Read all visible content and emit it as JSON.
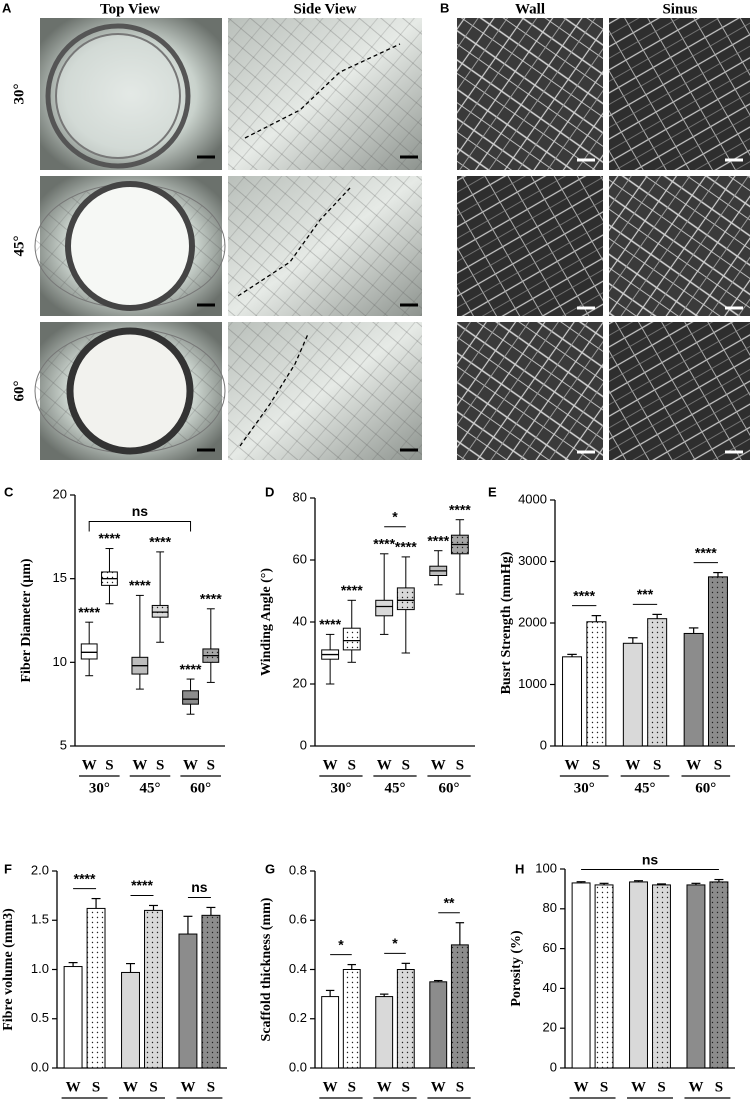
{
  "figure": {
    "labels": [
      "A",
      "B"
    ],
    "columns": [
      "Top View",
      "Side View",
      "Wall",
      "Sinus"
    ],
    "rows": [
      "30°",
      "45°",
      "60°"
    ]
  },
  "chart_data": [
    {
      "type": "box",
      "label": "C",
      "ylabel": "Fiber Diameter (μm)",
      "categories": [
        "W",
        "S",
        "W",
        "S",
        "W",
        "S"
      ],
      "groups": [
        "30°",
        "45°",
        "60°"
      ],
      "boxes": [
        {
          "min": 9.2,
          "q1": 10.2,
          "median": 10.6,
          "q3": 11.1,
          "max": 12.4
        },
        {
          "min": 13.5,
          "q1": 14.6,
          "median": 15.0,
          "q3": 15.4,
          "max": 16.8
        },
        {
          "min": 8.4,
          "q1": 9.3,
          "median": 9.8,
          "q3": 10.3,
          "max": 14.0
        },
        {
          "min": 11.2,
          "q1": 12.7,
          "median": 13.0,
          "q3": 13.4,
          "max": 16.6
        },
        {
          "min": 6.9,
          "q1": 7.5,
          "median": 7.8,
          "q3": 8.3,
          "max": 9.0
        },
        {
          "min": 8.8,
          "q1": 10.0,
          "median": 10.4,
          "q3": 10.8,
          "max": 13.2
        }
      ],
      "colors": [
        "#ffffff",
        "#ffffff",
        "#bdbdbd",
        "#d9d9d9",
        "#8c8c8c",
        "#a6a6a6"
      ],
      "dotted": [
        false,
        true,
        false,
        true,
        false,
        true
      ],
      "ylim": [
        5,
        20
      ],
      "yticks": [
        5,
        10,
        15,
        20
      ],
      "annotations": [
        {
          "text": "****",
          "at": 0
        },
        {
          "text": "****",
          "at": 1
        },
        {
          "text": "****",
          "at": 2
        },
        {
          "text": "****",
          "at": 3
        },
        {
          "text": "****",
          "at": 4
        },
        {
          "text": "****",
          "at": 5
        },
        {
          "text": "ns",
          "from": 0,
          "to": 4
        }
      ]
    },
    {
      "type": "box",
      "label": "D",
      "ylabel": "Winding Angle (°)",
      "categories": [
        "W",
        "S",
        "W",
        "S",
        "W",
        "S"
      ],
      "groups": [
        "30°",
        "45°",
        "60°"
      ],
      "boxes": [
        {
          "min": 20,
          "q1": 28,
          "median": 29.5,
          "q3": 31,
          "max": 36
        },
        {
          "min": 27,
          "q1": 31,
          "median": 34,
          "q3": 38,
          "max": 47
        },
        {
          "min": 36,
          "q1": 42,
          "median": 45,
          "q3": 47,
          "max": 62
        },
        {
          "min": 30,
          "q1": 44,
          "median": 47,
          "q3": 51,
          "max": 61
        },
        {
          "min": 52,
          "q1": 55,
          "median": 56.5,
          "q3": 58,
          "max": 63
        },
        {
          "min": 49,
          "q1": 62,
          "median": 65,
          "q3": 68,
          "max": 73
        }
      ],
      "colors": [
        "#ffffff",
        "#ffffff",
        "#d9d9d9",
        "#d9d9d9",
        "#bdbdbd",
        "#a6a6a6"
      ],
      "dotted": [
        false,
        true,
        false,
        true,
        false,
        true
      ],
      "ylim": [
        0,
        80
      ],
      "yticks": [
        0,
        20,
        40,
        60,
        80
      ],
      "annotations": [
        {
          "text": "****",
          "at": 0
        },
        {
          "text": "****",
          "at": 1
        },
        {
          "text": "****",
          "at": 2
        },
        {
          "text": "****",
          "at": 3
        },
        {
          "text": "****",
          "at": 4
        },
        {
          "text": "****",
          "at": 5
        },
        {
          "text": "*",
          "from": 2,
          "to": 3
        }
      ]
    },
    {
      "type": "bar",
      "label": "E",
      "ylabel": "Busrt Strength  (mmHg)",
      "categories": [
        "W",
        "S",
        "W",
        "S",
        "W",
        "S"
      ],
      "groups": [
        "30°",
        "45°",
        "60°"
      ],
      "values": [
        1450,
        2020,
        1670,
        2070,
        1830,
        2750
      ],
      "errors": [
        40,
        100,
        90,
        70,
        90,
        70
      ],
      "colors": [
        "#ffffff",
        "#ffffff",
        "#d9d9d9",
        "#d9d9d9",
        "#8c8c8c",
        "#8c8c8c"
      ],
      "dotted": [
        false,
        true,
        false,
        true,
        false,
        true
      ],
      "ylim": [
        0,
        4000
      ],
      "yticks": [
        0,
        1000,
        2000,
        3000,
        4000
      ],
      "annotations": [
        {
          "text": "****",
          "from": 0,
          "to": 1
        },
        {
          "text": "***",
          "from": 2,
          "to": 3
        },
        {
          "text": "****",
          "from": 4,
          "to": 5
        }
      ]
    },
    {
      "type": "bar",
      "label": "F",
      "ylabel": "Fibre volume (mm3)",
      "categories": [
        "W",
        "S",
        "W",
        "S",
        "W",
        "S"
      ],
      "groups": [
        "30°",
        "45°",
        "60°"
      ],
      "values": [
        1.03,
        1.62,
        0.97,
        1.6,
        1.36,
        1.55
      ],
      "errors": [
        0.04,
        0.1,
        0.09,
        0.05,
        0.18,
        0.08
      ],
      "colors": [
        "#ffffff",
        "#ffffff",
        "#d9d9d9",
        "#d9d9d9",
        "#8c8c8c",
        "#8c8c8c"
      ],
      "dotted": [
        false,
        true,
        false,
        true,
        false,
        true
      ],
      "ylim": [
        0,
        2
      ],
      "yticks": [
        {
          "value": 0,
          "label": "0.0"
        },
        {
          "value": 0.5,
          "label": "0.5"
        },
        {
          "value": 1,
          "label": "1.0"
        },
        {
          "value": 1.5,
          "label": "1.5"
        },
        {
          "value": 2,
          "label": "2.0"
        }
      ],
      "annotations": [
        {
          "text": "****",
          "from": 0,
          "to": 1
        },
        {
          "text": "****",
          "from": 2,
          "to": 3
        },
        {
          "text": "ns",
          "from": 4,
          "to": 5
        }
      ]
    },
    {
      "type": "bar",
      "label": "G",
      "ylabel": "Scaffold thickness (mm)",
      "categories": [
        "W",
        "S",
        "W",
        "S",
        "W",
        "S"
      ],
      "groups": [
        "30°",
        "45°",
        "60°"
      ],
      "values": [
        0.29,
        0.4,
        0.29,
        0.4,
        0.35,
        0.5
      ],
      "errors": [
        0.025,
        0.02,
        0.01,
        0.025,
        0.005,
        0.09
      ],
      "colors": [
        "#ffffff",
        "#ffffff",
        "#d9d9d9",
        "#d9d9d9",
        "#8c8c8c",
        "#8c8c8c"
      ],
      "dotted": [
        false,
        true,
        false,
        true,
        false,
        true
      ],
      "ylim": [
        0,
        0.8
      ],
      "yticks": [
        {
          "value": 0,
          "label": "0.0"
        },
        {
          "value": 0.2,
          "label": "0.2"
        },
        {
          "value": 0.4,
          "label": "0.4"
        },
        {
          "value": 0.6,
          "label": "0.6"
        },
        {
          "value": 0.8,
          "label": "0.8"
        }
      ],
      "annotations": [
        {
          "text": "*",
          "from": 0,
          "to": 1
        },
        {
          "text": "*",
          "from": 2,
          "to": 3
        },
        {
          "text": "**",
          "from": 4,
          "to": 5
        }
      ]
    },
    {
      "type": "bar",
      "label": "H",
      "ylabel": "Porosity (%)",
      "categories": [
        "W",
        "S",
        "W",
        "S",
        "W",
        "S"
      ],
      "groups": [
        "30°",
        "45°",
        "60°"
      ],
      "values": [
        93,
        92,
        93.5,
        92,
        92,
        93.5
      ],
      "errors": [
        0.6,
        0.8,
        0.6,
        0.5,
        0.8,
        1.2
      ],
      "colors": [
        "#ffffff",
        "#ffffff",
        "#d9d9d9",
        "#d9d9d9",
        "#8c8c8c",
        "#8c8c8c"
      ],
      "dotted": [
        false,
        true,
        false,
        true,
        false,
        true
      ],
      "ylim": [
        0,
        100
      ],
      "yticks": [
        0,
        20,
        40,
        60,
        80,
        100
      ],
      "annotations": [
        {
          "text": "ns",
          "from": 0,
          "to": 5
        }
      ]
    }
  ]
}
